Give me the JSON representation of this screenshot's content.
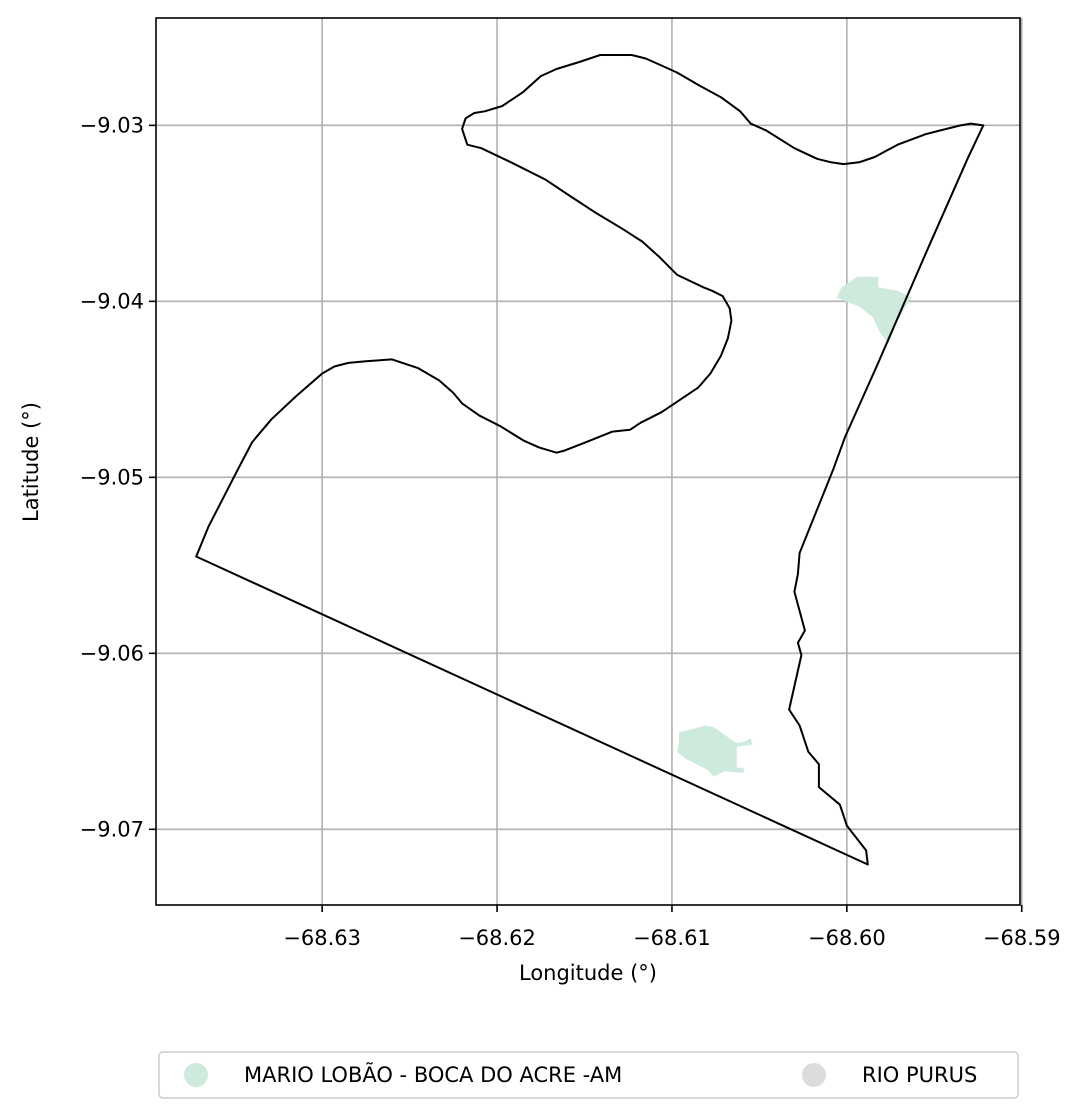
{
  "chart_data": {
    "type": "map",
    "xlabel": "Longitude (°)",
    "ylabel": "Latitude (°)",
    "xlim": [
      -68.6395,
      -68.5901
    ],
    "ylim": [
      -9.0743,
      -9.0239
    ],
    "grid": true,
    "x_ticks": [
      -68.63,
      -68.62,
      -68.61,
      -68.6,
      -68.59
    ],
    "x_tick_labels": [
      "−68.63",
      "−68.62",
      "−68.61",
      "−68.60",
      "−68.59"
    ],
    "y_ticks": [
      -9.03,
      -9.04,
      -9.05,
      -9.06,
      -9.07
    ],
    "y_tick_labels": [
      "−9.03",
      "−9.04",
      "−9.05",
      "−9.06",
      "−9.07"
    ],
    "legend_position": "bottom-center",
    "colors": {
      "mario_lobao": "#cdeadc",
      "rio_purus": "#dcdcdc",
      "boundary": "#000000"
    },
    "series": [
      {
        "name": "MARIO LOBÃO  - BOCA DO ACRE -AM",
        "color": "#cdeadc",
        "polygons": [
          [
            [
              -68.5994,
              -9.0386
            ],
            [
              -68.5982,
              -9.0386
            ],
            [
              -68.5982,
              -9.0392
            ],
            [
              -68.5971,
              -9.0394
            ],
            [
              -68.5963,
              -9.0398
            ],
            [
              -68.5967,
              -9.0404
            ],
            [
              -68.5972,
              -9.0413
            ],
            [
              -68.5976,
              -9.0424
            ],
            [
              -68.5981,
              -9.0418
            ],
            [
              -68.5985,
              -9.0409
            ],
            [
              -68.5993,
              -9.0403
            ],
            [
              -68.6006,
              -9.0398
            ],
            [
              -68.6003,
              -9.0392
            ]
          ],
          [
            [
              -68.6096,
              -9.0645
            ],
            [
              -68.6088,
              -9.0643
            ],
            [
              -68.6081,
              -9.0641
            ],
            [
              -68.6076,
              -9.0642
            ],
            [
              -68.6069,
              -9.0647
            ],
            [
              -68.6063,
              -9.0651
            ],
            [
              -68.6058,
              -9.065
            ],
            [
              -68.6055,
              -9.0648
            ],
            [
              -68.6054,
              -9.0652
            ],
            [
              -68.6063,
              -9.0653
            ],
            [
              -68.6063,
              -9.0665
            ],
            [
              -68.6059,
              -9.0665
            ],
            [
              -68.6059,
              -9.0668
            ],
            [
              -68.607,
              -9.0667
            ],
            [
              -68.6076,
              -9.067
            ],
            [
              -68.608,
              -9.0666
            ],
            [
              -68.6092,
              -9.066
            ],
            [
              -68.6097,
              -9.0656
            ],
            [
              -68.6096,
              -9.0651
            ]
          ]
        ]
      },
      {
        "name": "RIO PURUS",
        "color": "#dcdcdc",
        "polygons": []
      }
    ],
    "boundary": [
      [
        -68.622,
        -9.0302
      ],
      [
        -68.6218,
        -9.0296
      ],
      [
        -68.6213,
        -9.0293
      ],
      [
        -68.6207,
        -9.0292
      ],
      [
        -68.6197,
        -9.0289
      ],
      [
        -68.6185,
        -9.0281
      ],
      [
        -68.6175,
        -9.0272
      ],
      [
        -68.6166,
        -9.0268
      ],
      [
        -68.6153,
        -9.0264
      ],
      [
        -68.6141,
        -9.026
      ],
      [
        -68.6131,
        -9.026
      ],
      [
        -68.6123,
        -9.026
      ],
      [
        -68.6115,
        -9.0262
      ],
      [
        -68.6106,
        -9.0266
      ],
      [
        -68.6097,
        -9.027
      ],
      [
        -68.6085,
        -9.0277
      ],
      [
        -68.6072,
        -9.0284
      ],
      [
        -68.6061,
        -9.0292
      ],
      [
        -68.6055,
        -9.0299
      ],
      [
        -68.6046,
        -9.0303
      ],
      [
        -68.603,
        -9.0313
      ],
      [
        -68.6017,
        -9.0319
      ],
      [
        -68.6009,
        -9.0321
      ],
      [
        -68.6002,
        -9.0322
      ],
      [
        -68.5993,
        -9.0321
      ],
      [
        -68.5984,
        -9.0318
      ],
      [
        -68.5971,
        -9.0311
      ],
      [
        -68.5955,
        -9.0305
      ],
      [
        -68.5947,
        -9.0303
      ],
      [
        -68.5935,
        -9.03
      ],
      [
        -68.5929,
        -9.0299
      ],
      [
        -68.5922,
        -9.03
      ],
      [
        -68.5931,
        -9.0319
      ],
      [
        -68.5955,
        -9.0373
      ],
      [
        -68.5983,
        -9.0437
      ],
      [
        -68.6001,
        -9.0477
      ],
      [
        -68.6008,
        -9.0496
      ],
      [
        -68.6027,
        -9.0543
      ],
      [
        -68.6028,
        -9.0555
      ],
      [
        -68.603,
        -9.0565
      ],
      [
        -68.6024,
        -9.0587
      ],
      [
        -68.6028,
        -9.0594
      ],
      [
        -68.6026,
        -9.0601
      ],
      [
        -68.6033,
        -9.0632
      ],
      [
        -68.6027,
        -9.0641
      ],
      [
        -68.6022,
        -9.0656
      ],
      [
        -68.6016,
        -9.0663
      ],
      [
        -68.6016,
        -9.0676
      ],
      [
        -68.6004,
        -9.0686
      ],
      [
        -68.6,
        -9.0698
      ],
      [
        -68.5989,
        -9.0712
      ],
      [
        -68.5988,
        -9.072
      ],
      [
        -68.6372,
        -9.0545
      ],
      [
        -68.6365,
        -9.0528
      ],
      [
        -68.6349,
        -9.0497
      ],
      [
        -68.634,
        -9.048
      ],
      [
        -68.6329,
        -9.0467
      ],
      [
        -68.6315,
        -9.0454
      ],
      [
        -68.63,
        -9.0441
      ],
      [
        -68.6293,
        -9.0437
      ],
      [
        -68.6285,
        -9.0435
      ],
      [
        -68.6275,
        -9.0434
      ],
      [
        -68.626,
        -9.0433
      ],
      [
        -68.6245,
        -9.0438
      ],
      [
        -68.6233,
        -9.0445
      ],
      [
        -68.6225,
        -9.0452
      ],
      [
        -68.622,
        -9.0458
      ],
      [
        -68.621,
        -9.0465
      ],
      [
        -68.6198,
        -9.0471
      ],
      [
        -68.6185,
        -9.0479
      ],
      [
        -68.6176,
        -9.0483
      ],
      [
        -68.6166,
        -9.0486
      ],
      [
        -68.6162,
        -9.0485
      ],
      [
        -68.6149,
        -9.048
      ],
      [
        -68.6134,
        -9.0474
      ],
      [
        -68.6124,
        -9.0473
      ],
      [
        -68.6118,
        -9.0469
      ],
      [
        -68.6106,
        -9.0463
      ],
      [
        -68.6097,
        -9.0457
      ],
      [
        -68.6085,
        -9.0449
      ],
      [
        -68.6078,
        -9.0441
      ],
      [
        -68.6072,
        -9.0431
      ],
      [
        -68.6068,
        -9.0421
      ],
      [
        -68.6066,
        -9.0411
      ],
      [
        -68.6067,
        -9.0404
      ],
      [
        -68.6071,
        -9.0397
      ],
      [
        -68.6077,
        -9.0394
      ],
      [
        -68.6082,
        -9.0392
      ],
      [
        -68.6097,
        -9.0385
      ],
      [
        -68.6107,
        -9.0375
      ],
      [
        -68.6117,
        -9.0366
      ],
      [
        -68.6128,
        -9.0359
      ],
      [
        -68.6143,
        -9.035
      ],
      [
        -68.616,
        -9.0339
      ],
      [
        -68.6172,
        -9.0331
      ],
      [
        -68.6192,
        -9.0321
      ],
      [
        -68.6209,
        -9.0313
      ],
      [
        -68.6217,
        -9.0311
      ]
    ]
  }
}
